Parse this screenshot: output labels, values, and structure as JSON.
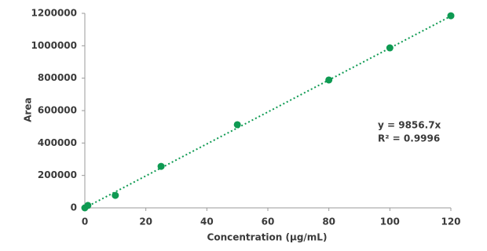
{
  "chart_data": {
    "type": "scatter",
    "x_label": "Concentration (µg/mL)",
    "y_label": "Area",
    "series": [
      {
        "name": "Area",
        "color": "#0e9a52",
        "x": [
          0,
          1,
          10,
          25,
          50,
          80,
          100,
          120
        ],
        "values": [
          0,
          15000,
          77000,
          256000,
          513000,
          789000,
          987000,
          1185000
        ]
      }
    ],
    "trendline": {
      "slope": 9856.7,
      "color": "#0e9a52",
      "style": "dotted"
    },
    "annotations": [
      "y = 9856.7x",
      "R² = 0.9996"
    ],
    "xlim": [
      0,
      120
    ],
    "xticks": [
      0,
      20,
      40,
      60,
      80,
      100,
      120
    ],
    "ylim": [
      0,
      1200000
    ],
    "yticks": [
      0,
      200000,
      400000,
      600000,
      800000,
      1000000,
      1200000
    ],
    "grid": false
  }
}
